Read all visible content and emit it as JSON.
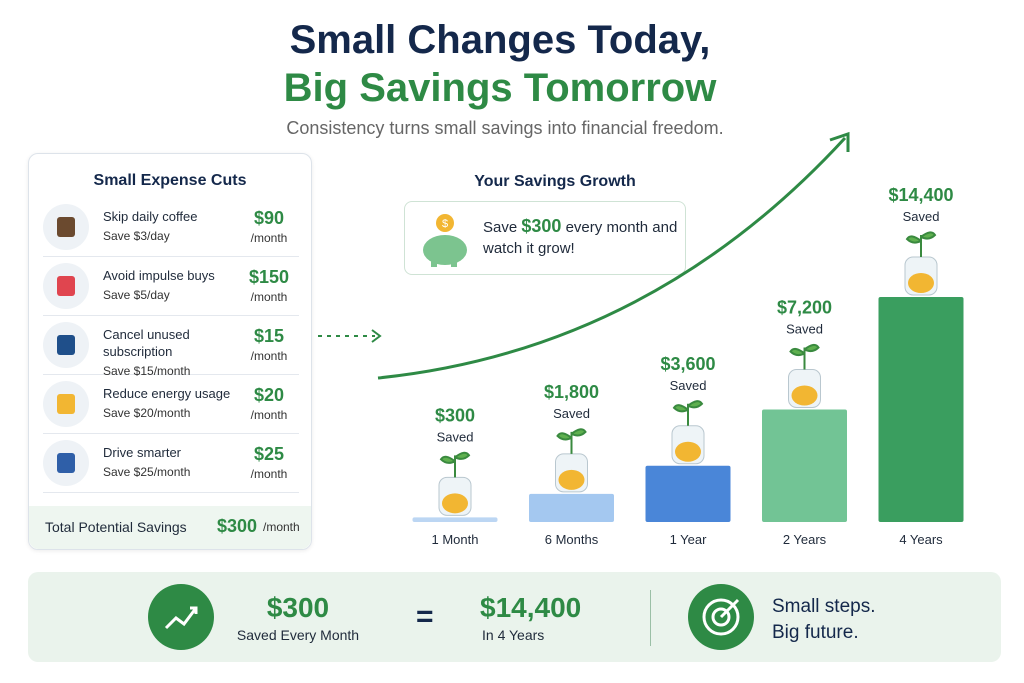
{
  "header": {
    "title_line1": "Small Changes Today,",
    "title_line2": "Big Savings Tomorrow",
    "subtitle": "Consistency turns small savings into financial freedom."
  },
  "expense_card": {
    "title": "Small Expense Cuts",
    "items": [
      {
        "label": "Skip daily coffee",
        "detail": "Save $3/day",
        "amount": "$90",
        "unit": "/month"
      },
      {
        "label": "Avoid impulse buys",
        "detail": "Save $5/day",
        "amount": "$150",
        "unit": "/month"
      },
      {
        "label": "Cancel unused subscription",
        "detail": "Save $15/month",
        "amount": "$15",
        "unit": "/month"
      },
      {
        "label": "Reduce energy usage",
        "detail": "Save $20/month",
        "amount": "$20",
        "unit": "/month"
      },
      {
        "label": "Drive smarter",
        "detail": "Save $25/month",
        "amount": "$25",
        "unit": "/month"
      }
    ],
    "total_label": "Total Potential Savings",
    "total_amount": "$300",
    "total_unit": "/month"
  },
  "chart_data": {
    "type": "bar",
    "title": "Your Savings Growth",
    "callout": {
      "before": "Save",
      "amount": "$300",
      "after": "every month and watch it grow!"
    },
    "categories": [
      "1 Month",
      "6 Months",
      "1 Year",
      "2 Years",
      "4 Years"
    ],
    "values": [
      300,
      1800,
      3600,
      7200,
      14400
    ],
    "value_labels": [
      "$300",
      "$1,800",
      "$3,600",
      "$7,200",
      "$14,400"
    ],
    "value_caption": "Saved",
    "colors": [
      "#bcd6f3",
      "#a4c8f0",
      "#4a86d8",
      "#72c495",
      "#3a9e5f"
    ]
  },
  "summary": {
    "amount": "$300",
    "amount_caption": "Saved Every Month",
    "equals": "=",
    "result": "$14,400",
    "result_caption": "In 4 Years",
    "motto_line1": "Small steps.",
    "motto_line2": "Big future."
  }
}
